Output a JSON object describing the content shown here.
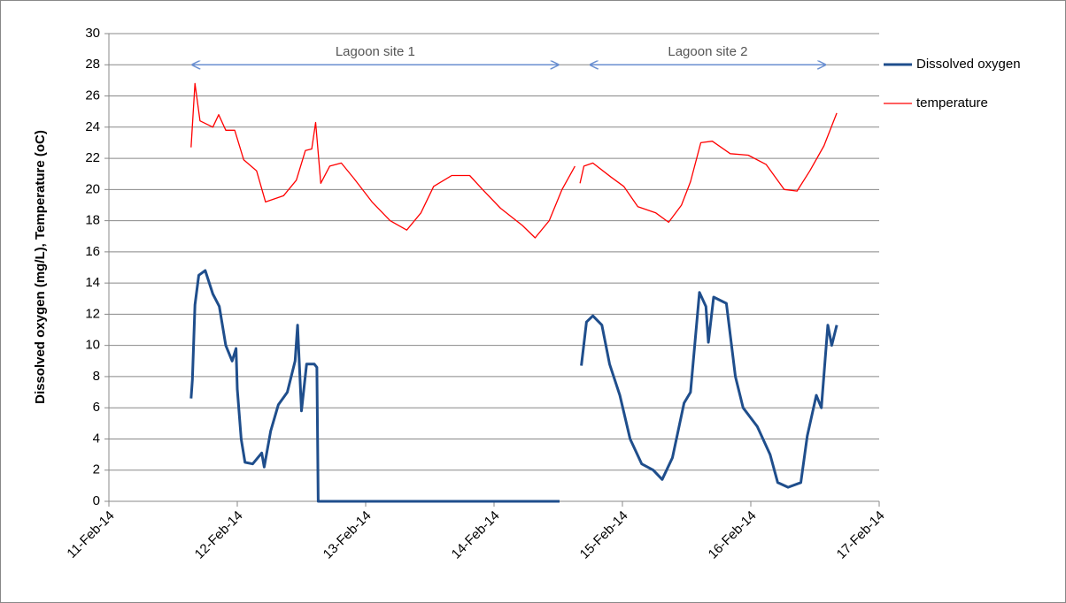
{
  "chart_data": {
    "type": "line",
    "y_label": "Dissolved oxygen (mg/L), Temperature (oC)",
    "xlim": [
      0,
      6
    ],
    "ylim": [
      0,
      30
    ],
    "xticks": [
      {
        "value": 0,
        "label": "11-Feb-14"
      },
      {
        "value": 1,
        "label": "12-Feb-14"
      },
      {
        "value": 2,
        "label": "13-Feb-14"
      },
      {
        "value": 3,
        "label": "14-Feb-14"
      },
      {
        "value": 4,
        "label": "15-Feb-14"
      },
      {
        "value": 5,
        "label": "16-Feb-14"
      },
      {
        "value": 6,
        "label": "17-Feb-14"
      }
    ],
    "yticks": [
      0,
      2,
      4,
      6,
      8,
      10,
      12,
      14,
      16,
      18,
      20,
      22,
      24,
      26,
      28,
      30
    ],
    "grid": true,
    "legend": "right",
    "annotations": [
      {
        "text": "Lagoon site 1",
        "x": [
          0.65,
          3.5
        ],
        "y": 28
      },
      {
        "text": "Lagoon site 2",
        "x": [
          3.75,
          5.58
        ],
        "y": 28
      }
    ],
    "series": [
      {
        "name": "Dissolved oxygen",
        "color": "#1f4e8c",
        "width": 3,
        "x": [
          0.64,
          0.65,
          0.67,
          0.7,
          0.75,
          0.81,
          0.86,
          0.91,
          0.96,
          0.99,
          1.0,
          1.03,
          1.06,
          1.12,
          1.19,
          1.21,
          1.26,
          1.32,
          1.39,
          1.45,
          1.47,
          1.5,
          1.54,
          1.6,
          1.62,
          1.63,
          3.51,
          null,
          3.68,
          3.72,
          3.77,
          3.84,
          3.9,
          3.98,
          4.06,
          4.15,
          4.24,
          4.31,
          4.39,
          4.48,
          4.53,
          4.6,
          4.65,
          4.67,
          4.71,
          4.81,
          4.88,
          4.94,
          5.05,
          5.15,
          5.21,
          5.29,
          5.39,
          5.44,
          5.51,
          5.55,
          5.6,
          5.63,
          5.67
        ],
        "values": [
          6.6,
          7.8,
          12.6,
          14.5,
          14.8,
          13.3,
          12.5,
          10.0,
          9.0,
          9.8,
          7.2,
          4.0,
          2.5,
          2.4,
          3.1,
          2.2,
          4.5,
          6.2,
          7.0,
          9.0,
          11.3,
          5.8,
          8.8,
          8.8,
          8.6,
          0,
          0,
          null,
          8.7,
          11.5,
          11.9,
          11.3,
          8.8,
          6.8,
          4.0,
          2.4,
          2.0,
          1.4,
          2.8,
          6.3,
          7.0,
          13.4,
          12.5,
          10.2,
          13.1,
          12.7,
          8.0,
          6.0,
          4.8,
          3.0,
          1.2,
          0.9,
          1.2,
          4.2,
          6.8,
          6.0,
          11.3,
          10.0,
          11.3
        ]
      },
      {
        "name": "temperature",
        "color": "#ff0000",
        "width": 1.3,
        "x": [
          0.64,
          0.67,
          0.71,
          0.81,
          0.855,
          0.91,
          0.98,
          1.05,
          1.15,
          1.22,
          1.36,
          1.46,
          1.53,
          1.58,
          1.61,
          1.65,
          1.72,
          1.81,
          1.91,
          2.05,
          2.19,
          2.32,
          2.43,
          2.53,
          2.67,
          2.81,
          2.91,
          3.05,
          3.22,
          3.32,
          3.43,
          3.53,
          3.63,
          null,
          3.67,
          3.7,
          3.77,
          3.91,
          4.01,
          4.12,
          4.26,
          4.36,
          4.46,
          4.53,
          4.61,
          4.7,
          4.84,
          4.98,
          5.12,
          5.26,
          5.36,
          5.46,
          5.57,
          5.67
        ],
        "values": [
          22.7,
          26.8,
          24.4,
          24.0,
          24.8,
          23.8,
          23.8,
          21.9,
          21.2,
          19.2,
          19.6,
          20.6,
          22.5,
          22.6,
          24.3,
          20.4,
          21.5,
          21.7,
          20.7,
          19.2,
          18.0,
          17.4,
          18.5,
          20.2,
          20.9,
          20.9,
          20.0,
          18.8,
          17.7,
          16.9,
          18.0,
          20.0,
          21.5,
          null,
          20.4,
          21.5,
          21.7,
          20.8,
          20.2,
          18.9,
          18.5,
          17.9,
          19.0,
          20.5,
          23.0,
          23.1,
          22.3,
          22.2,
          21.6,
          20.0,
          19.9,
          21.2,
          22.8,
          24.9
        ]
      }
    ]
  }
}
